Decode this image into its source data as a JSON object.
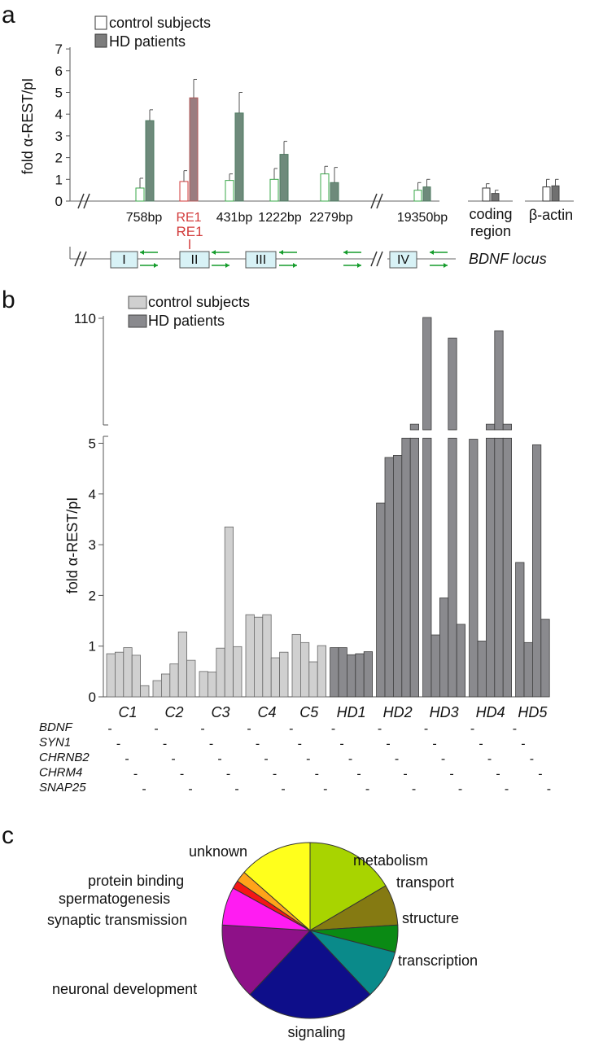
{
  "panels": {
    "a": "a",
    "b": "b",
    "c": "c"
  },
  "chart_data": [
    {
      "type": "bar",
      "panel": "a",
      "ylabel": "fold α-REST/pI",
      "ylim": [
        0,
        7
      ],
      "yticks": [
        0,
        1,
        2,
        3,
        4,
        5,
        6,
        7
      ],
      "categories": [
        "758bp",
        "RE1",
        "431bp",
        "1222bp",
        "2279bp",
        "19350bp",
        "coding region",
        "β-actin"
      ],
      "highlight_category": "RE1",
      "legend": [
        "control subjects",
        "HD patients"
      ],
      "legend_position": "top-left",
      "series": [
        {
          "name": "control subjects",
          "values": [
            0.6,
            0.9,
            0.95,
            1.0,
            1.25,
            0.5,
            0.6,
            0.65
          ],
          "errors": [
            0.45,
            0.5,
            0.3,
            0.5,
            0.35,
            0.35,
            0.2,
            0.35
          ]
        },
        {
          "name": "HD patients",
          "values": [
            3.7,
            4.75,
            4.05,
            2.15,
            0.85,
            0.65,
            0.35,
            0.7
          ],
          "errors": [
            0.5,
            0.85,
            0.95,
            0.6,
            0.7,
            0.35,
            0.15,
            0.3
          ]
        }
      ],
      "locus": {
        "label": "BDNF locus",
        "re1_label": "RE1",
        "exons": [
          "I",
          "II",
          "III",
          "IV"
        ]
      }
    },
    {
      "type": "bar",
      "panel": "b",
      "ylabel": "fold α-REST/pI",
      "yticks": [
        0,
        1,
        2,
        3,
        4,
        5,
        110
      ],
      "axis_break": [
        5.1,
        110
      ],
      "legend": [
        "control subjects",
        "HD patients"
      ],
      "legend_position": "top-left",
      "groups": [
        {
          "name": "C1",
          "type": "control subjects",
          "values": [
            0.85,
            0.88,
            0.97,
            0.82,
            0.22
          ]
        },
        {
          "name": "C2",
          "type": "control subjects",
          "values": [
            0.32,
            0.45,
            0.65,
            1.28,
            0.72
          ]
        },
        {
          "name": "C3",
          "type": "control subjects",
          "values": [
            0.5,
            0.49,
            0.96,
            3.35,
            0.99
          ]
        },
        {
          "name": "C4",
          "type": "control subjects",
          "values": [
            1.62,
            1.57,
            1.62,
            0.77,
            0.88
          ]
        },
        {
          "name": "C5",
          "type": "control subjects",
          "values": [
            1.23,
            1.07,
            0.69,
            1.01
          ]
        },
        {
          "name": "HD1",
          "type": "HD patients",
          "values": [
            0.97,
            0.97,
            0.83,
            0.85,
            0.89
          ]
        },
        {
          "name": "HD2",
          "type": "HD patients",
          "values": [
            3.82,
            4.72,
            4.76,
            5.1,
            6.0
          ]
        },
        {
          "name": "HD3",
          "type": "HD patients",
          "values": [
            110,
            1.22,
            1.95,
            90,
            1.43
          ]
        },
        {
          "name": "HD4",
          "type": "HD patients",
          "values": [
            5.08,
            1.1,
            6.0,
            97,
            6.0
          ]
        },
        {
          "name": "HD5",
          "type": "HD patients",
          "values": [
            2.65,
            1.07,
            4.97,
            1.53
          ]
        }
      ],
      "genes": [
        "BDNF",
        "SYN1",
        "CHRNB2",
        "CHRM4",
        "SNAP25"
      ],
      "gene_mark": "-"
    },
    {
      "type": "pie",
      "panel": "c",
      "slices": [
        {
          "label": "metabolism",
          "value": 16.5,
          "color": "#a8d400"
        },
        {
          "label": "transport",
          "value": 7.5,
          "color": "#857a12"
        },
        {
          "label": "structure",
          "value": 5,
          "color": "#0a8a14"
        },
        {
          "label": "transcription",
          "value": 9,
          "color": "#0a8a8a"
        },
        {
          "label": "signaling",
          "value": 24,
          "color": "#0e0e8a"
        },
        {
          "label": "neuronal development",
          "value": 14,
          "color": "#8e1188"
        },
        {
          "label": "synaptic transmission",
          "value": 7,
          "color": "#ff1cf2"
        },
        {
          "label": "spermatogenesis",
          "value": 1.5,
          "color": "#f41616"
        },
        {
          "label": "protein binding",
          "value": 2,
          "color": "#ffa31a"
        },
        {
          "label": "unknown",
          "value": 13.5,
          "color": "#ffff1c"
        }
      ]
    }
  ]
}
